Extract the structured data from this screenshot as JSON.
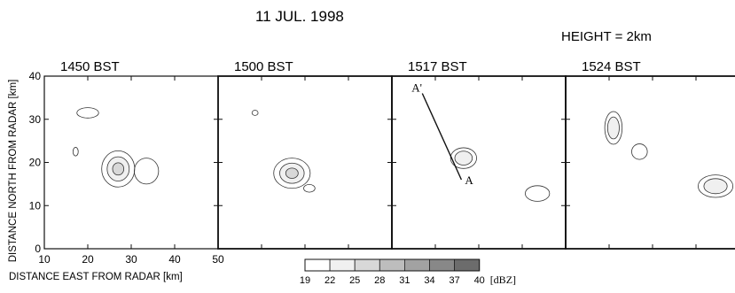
{
  "figure": {
    "date": "11 JUL. 1998",
    "height_label": "HEIGHT = 2km",
    "ylabel": "DISTANCE NORTH FROM RADAR [km]",
    "xlabel": "DISTANCE EAST FROM RADAR [km]",
    "x_ticks": [
      "10",
      "20",
      "30",
      "40",
      "50"
    ],
    "y_ticks": [
      "0",
      "10",
      "20",
      "30",
      "40"
    ],
    "colorbar": {
      "levels": [
        "19",
        "22",
        "25",
        "28",
        "31",
        "34",
        "37",
        "40"
      ],
      "unit": "[dBZ]",
      "fills": [
        "#ffffff",
        "#f0f0f0",
        "#d8d8d8",
        "#bdbdbd",
        "#a2a2a2",
        "#888888",
        "#6c6c6c"
      ]
    },
    "panels": [
      {
        "time": "1450 BST"
      },
      {
        "time": "1500 BST"
      },
      {
        "time": "1517 BST",
        "section_start": "A'",
        "section_end": "A"
      },
      {
        "time": "1524 BST"
      }
    ]
  },
  "chart_data": {
    "type": "contour",
    "x_range": [
      10,
      50
    ],
    "y_range": [
      0,
      40
    ],
    "panels": [
      {
        "time": "1450 BST",
        "echoes": [
          {
            "cx": 20,
            "cy": 31.5,
            "rx": 2.5,
            "ry": 1.2,
            "levels": 1
          },
          {
            "cx": 17.2,
            "cy": 22.5,
            "rx": 0.6,
            "ry": 1.0,
            "levels": 1
          },
          {
            "cx": 27,
            "cy": 18.5,
            "rx": 3.8,
            "ry": 4.2,
            "levels": 3
          },
          {
            "cx": 33.5,
            "cy": 18,
            "rx": 2.8,
            "ry": 3.0,
            "levels": 1
          }
        ]
      },
      {
        "time": "1500 BST",
        "echoes": [
          {
            "cx": 18.5,
            "cy": 31.5,
            "rx": 0.7,
            "ry": 0.6,
            "levels": 1
          },
          {
            "cx": 27,
            "cy": 17.5,
            "rx": 4.2,
            "ry": 3.5,
            "levels": 3
          },
          {
            "cx": 31,
            "cy": 14,
            "rx": 1.3,
            "ry": 0.9,
            "levels": 1
          }
        ]
      },
      {
        "time": "1517 BST",
        "echoes": [
          {
            "cx": 26.5,
            "cy": 21,
            "rx": 3.0,
            "ry": 2.4,
            "levels": 2
          },
          {
            "cx": 43.5,
            "cy": 12.8,
            "rx": 2.8,
            "ry": 1.8,
            "levels": 1
          }
        ],
        "cross_section": {
          "start": [
            17,
            36
          ],
          "end": [
            26,
            16
          ]
        }
      },
      {
        "time": "1524 BST",
        "echoes": [
          {
            "cx": 21,
            "cy": 28,
            "rx": 2.0,
            "ry": 3.8,
            "levels": 2
          },
          {
            "cx": 27,
            "cy": 22.5,
            "rx": 1.8,
            "ry": 1.8,
            "levels": 1
          },
          {
            "cx": 44.5,
            "cy": 14.5,
            "rx": 4.0,
            "ry": 2.6,
            "levels": 2
          }
        ]
      }
    ]
  }
}
